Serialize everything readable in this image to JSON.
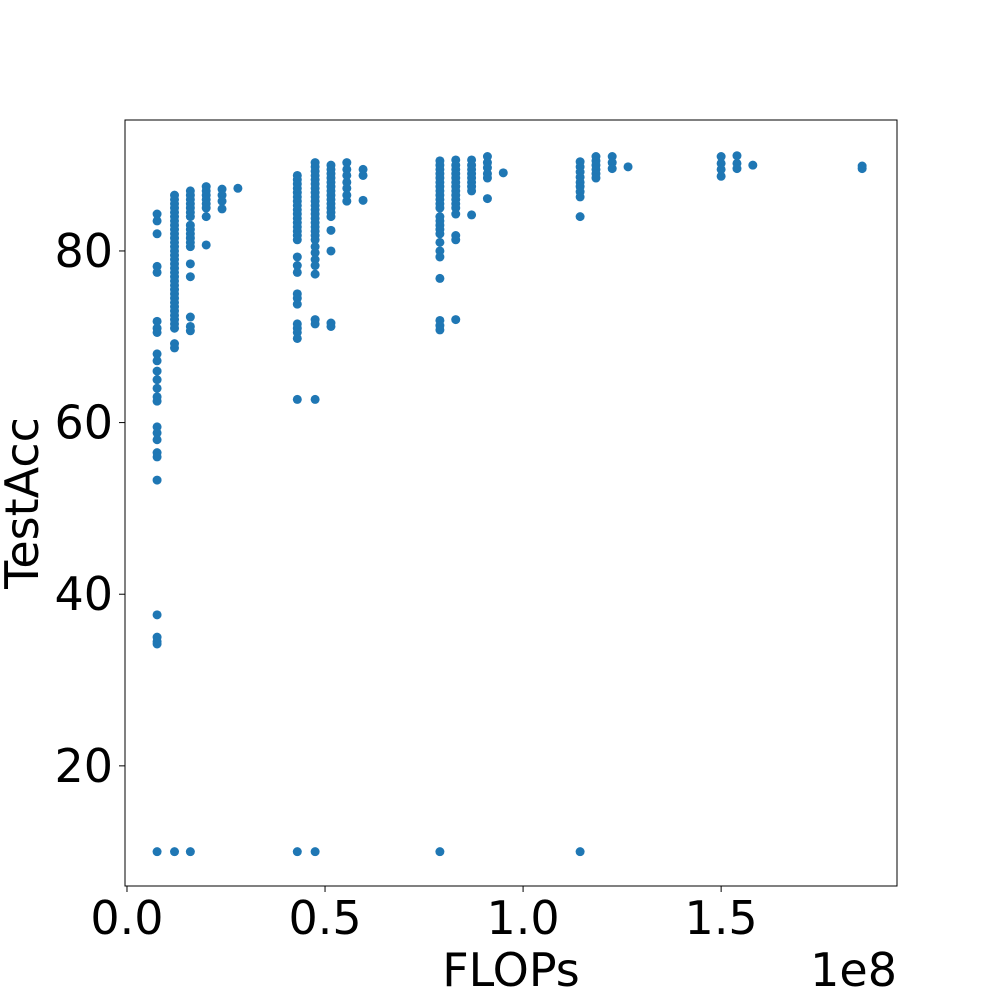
{
  "chart_data": {
    "type": "scatter",
    "x_label": "FLOPs",
    "y_label": "TestAcc",
    "x_offset_label": "1e8",
    "color": "#1f77b4",
    "xlim": [
      -500000,
      194400000
    ],
    "ylim": [
      6.0,
      95.26
    ],
    "xticks": [
      {
        "value": 0,
        "label": "0.0"
      },
      {
        "value": 50000000,
        "label": "0.5"
      },
      {
        "value": 100000000,
        "label": "1.0"
      },
      {
        "value": 150000000,
        "label": "1.5"
      }
    ],
    "yticks": [
      20,
      40,
      60,
      80
    ],
    "x": [
      7600000,
      7600000,
      7600000,
      7600000,
      7600000,
      7600000,
      7600000,
      7600000,
      7600000,
      7600000,
      7600000,
      7600000,
      7600000,
      7600000,
      7600000,
      7600000,
      7600000,
      7600000,
      7600000,
      7600000,
      7600000,
      7600000,
      7600000,
      7600000,
      7600000,
      7600000,
      12000000,
      12000000,
      12000000,
      12000000,
      12000000,
      12000000,
      12000000,
      12000000,
      12000000,
      12000000,
      12000000,
      12000000,
      12000000,
      12000000,
      12000000,
      12000000,
      12000000,
      12000000,
      12000000,
      12000000,
      12000000,
      12000000,
      12000000,
      12000000,
      12000000,
      12000000,
      12000000,
      12000000,
      12000000,
      12000000,
      12000000,
      12000000,
      12000000,
      12000000,
      12000000,
      16000000,
      16000000,
      16000000,
      16000000,
      16000000,
      16000000,
      16000000,
      16000000,
      16000000,
      16000000,
      16000000,
      16000000,
      16000000,
      16000000,
      16000000,
      16000000,
      16000000,
      16000000,
      16000000,
      20000000,
      20000000,
      20000000,
      20000000,
      20000000,
      20000000,
      20000000,
      20000000,
      24000000,
      24000000,
      24000000,
      24000000,
      28000000,
      43000000,
      43000000,
      43000000,
      43000000,
      43000000,
      43000000,
      43000000,
      43000000,
      43000000,
      43000000,
      43000000,
      43000000,
      43000000,
      43000000,
      43000000,
      43000000,
      43000000,
      43000000,
      43000000,
      43000000,
      43000000,
      43000000,
      43000000,
      43000000,
      43000000,
      43000000,
      43000000,
      43000000,
      47500000,
      47500000,
      47500000,
      47500000,
      47500000,
      47500000,
      47500000,
      47500000,
      47500000,
      47500000,
      47500000,
      47500000,
      47500000,
      47500000,
      47500000,
      47500000,
      47500000,
      47500000,
      47500000,
      47500000,
      47500000,
      47500000,
      47500000,
      47500000,
      47500000,
      47500000,
      47500000,
      47500000,
      51500000,
      51500000,
      51500000,
      51500000,
      51500000,
      51500000,
      51500000,
      51500000,
      51500000,
      51500000,
      51500000,
      51500000,
      51500000,
      51500000,
      51500000,
      51500000,
      51500000,
      55500000,
      55500000,
      55500000,
      55500000,
      55500000,
      55500000,
      55500000,
      59600000,
      59600000,
      59600000,
      79000000,
      79000000,
      79000000,
      79000000,
      79000000,
      79000000,
      79000000,
      79000000,
      79000000,
      79000000,
      79000000,
      79000000,
      79000000,
      79000000,
      79000000,
      79000000,
      79000000,
      79000000,
      79000000,
      79000000,
      79000000,
      79000000,
      79000000,
      79000000,
      79000000,
      83000000,
      83000000,
      83000000,
      83000000,
      83000000,
      83000000,
      83000000,
      83000000,
      83000000,
      83000000,
      83000000,
      83000000,
      83000000,
      83000000,
      83000000,
      83000000,
      87000000,
      87000000,
      87000000,
      87000000,
      87000000,
      87000000,
      87000000,
      87000000,
      87000000,
      91000000,
      91000000,
      91000000,
      91000000,
      91000000,
      91000000,
      95000000,
      114400000,
      114400000,
      114400000,
      114400000,
      114400000,
      114400000,
      114400000,
      114400000,
      114400000,
      114400000,
      118400000,
      118400000,
      118400000,
      118400000,
      118400000,
      118400000,
      122500000,
      122500000,
      122500000,
      126500000,
      150000000,
      150000000,
      150000000,
      150000000,
      154000000,
      154000000,
      154000000,
      158000000,
      185600000,
      185600000
    ],
    "values": [
      84.3,
      83.5,
      82,
      78.2,
      77.5,
      71.8,
      71,
      70.5,
      68,
      67.2,
      66,
      65,
      64,
      63,
      62.5,
      59.5,
      58.8,
      58,
      56.5,
      56,
      53.3,
      37.6,
      35,
      34.5,
      34.2,
      10,
      86.5,
      86,
      85.5,
      85,
      84.5,
      84,
      83.5,
      83,
      82.5,
      82,
      81.5,
      81,
      80.5,
      80,
      79.5,
      79,
      78.5,
      78,
      77.5,
      77,
      76.5,
      76,
      75.5,
      75,
      74.5,
      74,
      73.5,
      73,
      72.5,
      72,
      71.5,
      71,
      69.2,
      68.7,
      10,
      87,
      86.5,
      86,
      85.5,
      85,
      84.5,
      84,
      83,
      82.5,
      82,
      81.5,
      81,
      80.5,
      78.5,
      77,
      72.3,
      71.2,
      70.7,
      10,
      87.5,
      87,
      86.5,
      86,
      85.5,
      85,
      84,
      80.7,
      87.2,
      86.5,
      85.8,
      84.9,
      87.3,
      88.8,
      88.3,
      87.8,
      87.3,
      86.8,
      86.3,
      85.8,
      85.3,
      84.8,
      84.3,
      83.8,
      83.3,
      82.8,
      82.3,
      81.8,
      81.3,
      79.3,
      78.3,
      77.5,
      75,
      74.5,
      73.8,
      71.5,
      71,
      70.5,
      69.8,
      62.7,
      10,
      90.3,
      89.8,
      89.3,
      88.8,
      88.3,
      87.8,
      87.3,
      86.8,
      86.3,
      85.8,
      85.3,
      84.8,
      84.3,
      83.8,
      83.3,
      82.8,
      82.3,
      81.8,
      81.3,
      80.5,
      79.8,
      79,
      78.3,
      77.3,
      72,
      71.5,
      62.7,
      10,
      90,
      89.5,
      89,
      88.5,
      88,
      87.5,
      87,
      86.5,
      86,
      85.5,
      85,
      84.5,
      84,
      82.4,
      80,
      71.6,
      71.2,
      90.3,
      89.5,
      88.8,
      88,
      87.3,
      86.5,
      85.8,
      89.5,
      88.8,
      85.9,
      90.5,
      90,
      89.5,
      89,
      88.5,
      88,
      87.5,
      87,
      86.5,
      86,
      85.5,
      85,
      84,
      83.5,
      83,
      82.5,
      82,
      81,
      80,
      79.3,
      76.8,
      71.9,
      71.3,
      70.8,
      10,
      90.6,
      90,
      89.5,
      89,
      88.5,
      88,
      87.5,
      87,
      86.5,
      86,
      85.5,
      85,
      84.3,
      81.8,
      81.3,
      72,
      90.6,
      90,
      89.5,
      89,
      88.5,
      88,
      87.5,
      87,
      84.2,
      91,
      90.3,
      89.7,
      89,
      88.5,
      86.1,
      89.1,
      90.4,
      89.8,
      89.2,
      88.6,
      88,
      87.5,
      86.9,
      86.3,
      84,
      10,
      91,
      90.5,
      90,
      89.5,
      89,
      88.5,
      91,
      90.3,
      89.6,
      89.8,
      91,
      90.2,
      89.5,
      88.7,
      91.1,
      90.2,
      89.6,
      90,
      89.9,
      89.6
    ]
  }
}
